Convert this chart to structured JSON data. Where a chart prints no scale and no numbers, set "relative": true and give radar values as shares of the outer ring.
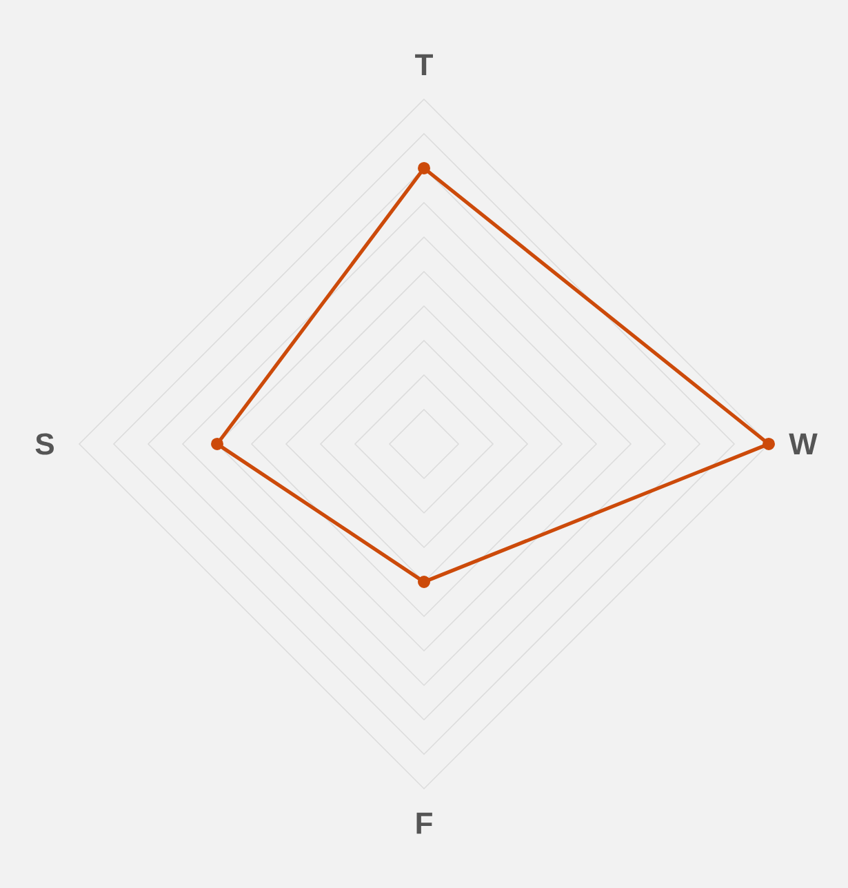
{
  "chart_data": {
    "type": "radar",
    "categories": [
      "T",
      "W",
      "F",
      "S"
    ],
    "relative": true,
    "grid": true,
    "marker": "circle",
    "series": [
      {
        "color": "#cc4a0a",
        "values": [
          0.8,
          1,
          0.4,
          0.6
        ]
      }
    ]
  }
}
